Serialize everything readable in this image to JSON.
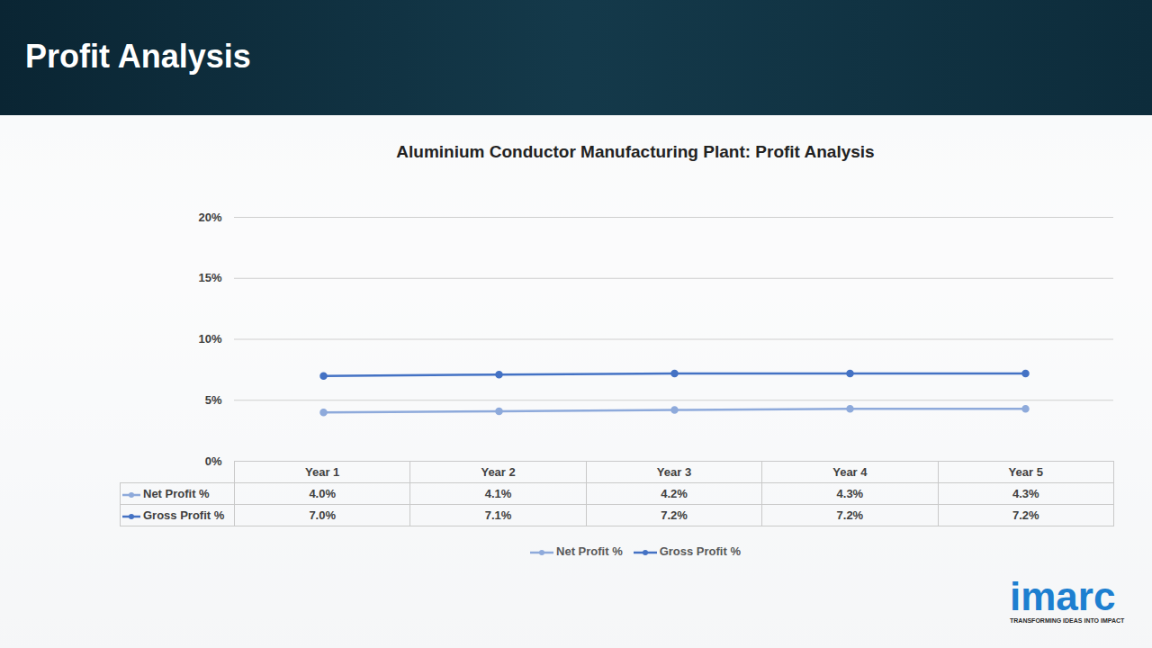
{
  "page": {
    "title": "Profit Analysis",
    "logo": "imarc",
    "tagline": "TRANSFORMING IDEAS INTO IMPACT"
  },
  "chart_data": {
    "type": "line",
    "title": "Aluminium Conductor Manufacturing Plant: Profit Analysis",
    "categories": [
      "Year 1",
      "Year 2",
      "Year 3",
      "Year 4",
      "Year 5"
    ],
    "series": [
      {
        "name": "Net Profit %",
        "color": "#8eaadb",
        "marker": "circle",
        "values": [
          4.0,
          4.1,
          4.2,
          4.3,
          4.3
        ],
        "value_labels": [
          "4.0%",
          "4.1%",
          "4.2%",
          "4.3%",
          "4.3%"
        ]
      },
      {
        "name": "Gross Profit %",
        "color": "#4472c4",
        "marker": "circle",
        "values": [
          7.0,
          7.1,
          7.2,
          7.2,
          7.2
        ],
        "value_labels": [
          "7.0%",
          "7.1%",
          "7.2%",
          "7.2%",
          "7.2%"
        ]
      }
    ],
    "ylim": [
      0,
      20
    ],
    "yticks": [
      {
        "value": 0,
        "label": "0%"
      },
      {
        "value": 5,
        "label": "5%"
      },
      {
        "value": 10,
        "label": "10%"
      },
      {
        "value": 15,
        "label": "15%"
      },
      {
        "value": 20,
        "label": "20%"
      }
    ],
    "grid": true,
    "legend": "bottom",
    "data_labels": true
  }
}
